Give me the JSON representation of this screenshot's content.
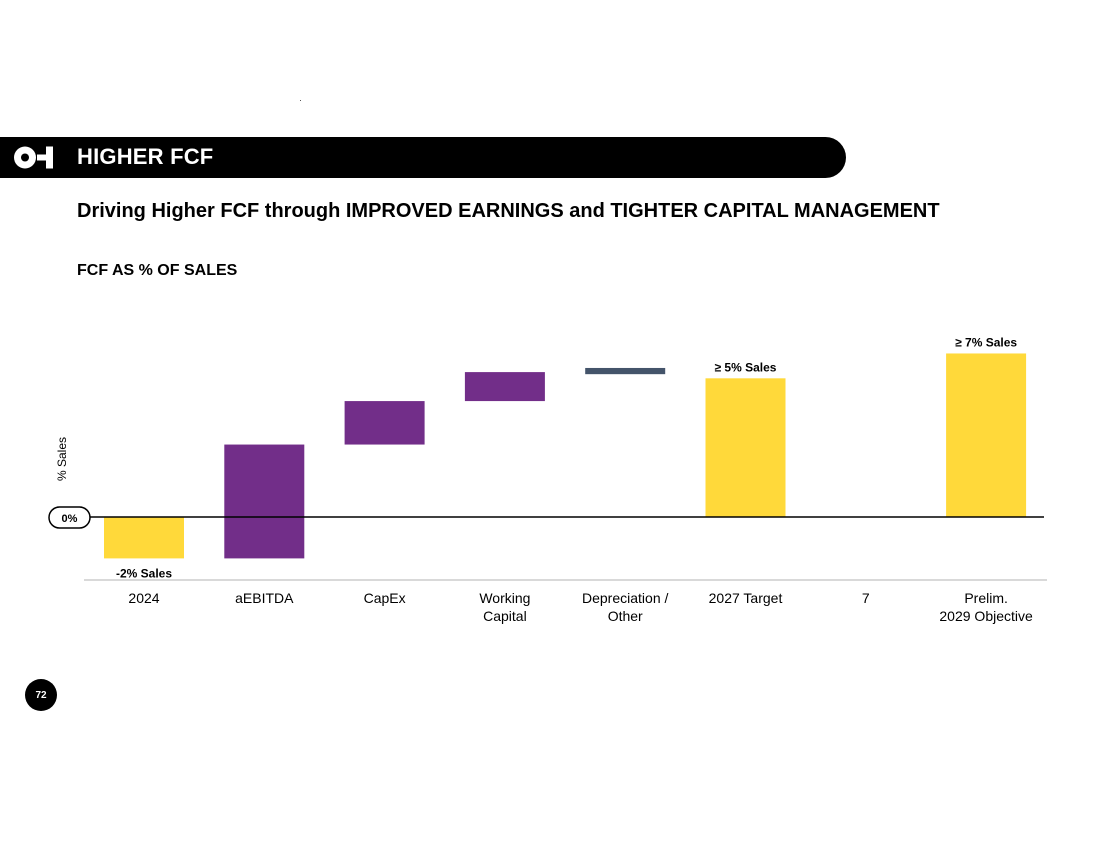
{
  "header": {
    "banner_title": "HIGHER FCF",
    "subtitle": "Driving Higher FCF through IMPROVED EARNINGS and TIGHTER CAPITAL MANAGEMENT",
    "chart_title": "FCF AS % OF SALES"
  },
  "page_number": "72",
  "colors": {
    "yellow": "#FFD93A",
    "purple": "#722E89",
    "slate": "#44546A",
    "banner": "#000000"
  },
  "chart_data": {
    "type": "bar",
    "subtype": "waterfall",
    "ylabel": "% Sales",
    "ylim": [
      -2.5,
      8
    ],
    "zero_label": "0%",
    "categories": [
      "2024",
      "aEBITDA",
      "CapEx",
      "Working\nCapital",
      "Depreciation /\nOther",
      "2027 Target",
      "7",
      "Prelim.\n2029 Objective"
    ],
    "bars": [
      {
        "category": "2024",
        "start": 0,
        "end": -2,
        "kind": "total",
        "color": "yellow",
        "label": "-2% Sales"
      },
      {
        "category": "aEBITDA",
        "start": -2,
        "end": 3.5,
        "kind": "delta",
        "color": "purple",
        "label": ""
      },
      {
        "category": "CapEx",
        "start": 3.5,
        "end": 5.6,
        "kind": "delta",
        "color": "purple",
        "label": ""
      },
      {
        "category": "Working\nCapital",
        "start": 5.6,
        "end": 7.0,
        "kind": "delta",
        "color": "purple",
        "label": ""
      },
      {
        "category": "Depreciation /\nOther",
        "start": 6.9,
        "end": 7.2,
        "kind": "delta",
        "color": "slate",
        "label": ""
      },
      {
        "category": "2027 Target",
        "start": 0,
        "end": 6.7,
        "kind": "total",
        "color": "yellow",
        "label": "≥ 5% Sales"
      },
      {
        "category": "7",
        "start": 0,
        "end": 0,
        "kind": "empty",
        "color": "yellow",
        "label": ""
      },
      {
        "category": "Prelim.\n2029 Objective",
        "start": 0,
        "end": 7.9,
        "kind": "total",
        "color": "yellow",
        "label": "≥ 7% Sales"
      }
    ]
  }
}
